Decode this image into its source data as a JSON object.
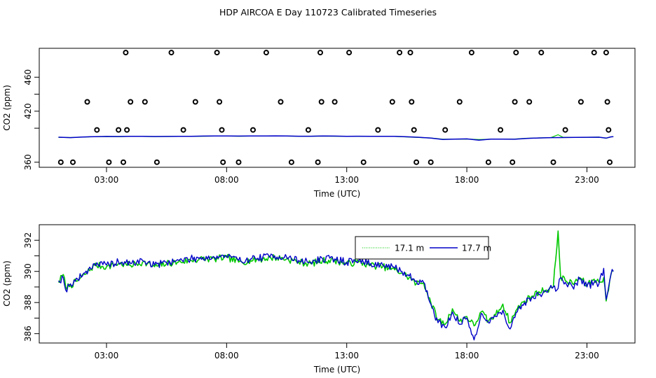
{
  "title": "HDP AIRCOA E  Day 110723  Calibrated Timeseries",
  "colors": {
    "green": "#00c800",
    "blue": "#0000c8",
    "black": "#000000"
  },
  "chart_data": [
    {
      "type": "scatter",
      "xlabel": "Time (UTC)",
      "ylabel": "CO2 (ppm)",
      "xlim": [
        0.2,
        25.0
      ],
      "ylim": [
        354,
        494
      ],
      "x_ticks": [
        3,
        8,
        13,
        18,
        23
      ],
      "x_tick_labels": [
        "03:00",
        "08:00",
        "13:00",
        "18:00",
        "23:00"
      ],
      "y_ticks": [
        360,
        420,
        460
      ],
      "y_tick_labels": [
        "360",
        "420",
        "460"
      ],
      "y_ticks_extra": [
        400,
        440
      ],
      "grid": false,
      "circles": {
        "x": [
          1.6,
          2.6,
          3.1,
          3.85,
          4.0,
          5.1,
          6.2,
          1.1,
          2.2,
          3.5,
          3.7,
          3.8,
          4.6,
          5.7,
          6.7,
          7.6,
          7.7,
          7.8,
          7.85,
          8.5,
          9.1,
          9.65,
          10.25,
          10.7,
          11.4,
          11.8,
          11.9,
          11.95,
          12.5,
          13.1,
          13.7,
          14.3,
          14.9,
          15.2,
          15.65,
          15.7,
          15.8,
          15.9,
          16.5,
          17.1,
          17.7,
          18.2,
          18.9,
          19.4,
          19.9,
          20.0,
          20.05,
          20.6,
          21.1,
          21.6,
          22.1,
          22.75,
          23.3,
          23.8,
          23.85,
          23.9,
          23.95
        ],
        "y": [
          360,
          398,
          360,
          398,
          431,
          360,
          398,
          360,
          431,
          398,
          360,
          489,
          431,
          489,
          431,
          489,
          431,
          398,
          360,
          360,
          398,
          489,
          431,
          360,
          398,
          360,
          489,
          431,
          431,
          489,
          360,
          398,
          431,
          489,
          489,
          431,
          398,
          360,
          360,
          398,
          431,
          489,
          360,
          398,
          360,
          431,
          489,
          431,
          489,
          360,
          398,
          431,
          489,
          489,
          431,
          398,
          360
        ]
      },
      "series": [
        {
          "color": "green",
          "x": [
            1.0,
            1.5,
            2.0,
            2.5,
            3.0,
            3.5,
            4.0,
            4.5,
            5.0,
            5.5,
            6.0,
            6.5,
            7.0,
            7.5,
            8.0,
            8.5,
            9.0,
            9.5,
            10.0,
            10.5,
            11.0,
            11.5,
            12.0,
            12.5,
            13.0,
            13.5,
            14.0,
            14.5,
            15.0,
            15.5,
            16.0,
            16.5,
            17.0,
            17.5,
            18.0,
            18.5,
            19.0,
            19.5,
            20.0,
            20.5,
            21.0,
            21.5,
            21.8,
            22.0,
            22.5,
            23.0,
            23.5,
            23.8,
            24.0,
            24.1
          ],
          "y": [
            389.2,
            389.0,
            389.6,
            390.0,
            390.2,
            390.0,
            390.4,
            390.3,
            390.1,
            390.2,
            390.3,
            390.4,
            390.6,
            390.7,
            390.8,
            390.6,
            390.7,
            390.8,
            390.9,
            390.7,
            390.5,
            390.6,
            390.7,
            390.6,
            390.5,
            390.6,
            390.5,
            390.4,
            390.3,
            389.7,
            389.1,
            388.5,
            387.1,
            387.0,
            387.3,
            386.7,
            387.0,
            387.2,
            387.3,
            388.2,
            388.6,
            388.9,
            392.3,
            389.4,
            389.1,
            389.3,
            389.5,
            388.2,
            389.8,
            390.0
          ]
        },
        {
          "color": "blue",
          "x": [
            1.0,
            1.5,
            2.0,
            2.5,
            3.0,
            3.5,
            4.0,
            4.5,
            5.0,
            5.5,
            6.0,
            6.5,
            7.0,
            7.5,
            8.0,
            8.5,
            9.0,
            9.5,
            10.0,
            10.5,
            11.0,
            11.5,
            12.0,
            12.5,
            13.0,
            13.5,
            14.0,
            14.5,
            15.0,
            15.5,
            16.0,
            16.5,
            17.0,
            17.5,
            18.0,
            18.5,
            19.0,
            19.5,
            20.0,
            20.5,
            21.0,
            21.5,
            22.0,
            22.5,
            23.0,
            23.5,
            23.8,
            24.0,
            24.1
          ],
          "y": [
            389.4,
            388.9,
            389.7,
            390.1,
            390.3,
            390.2,
            390.5,
            390.4,
            390.2,
            390.3,
            390.4,
            390.5,
            390.7,
            390.8,
            390.9,
            390.7,
            390.8,
            390.8,
            391.0,
            390.8,
            390.6,
            390.6,
            390.8,
            390.7,
            390.5,
            390.6,
            390.5,
            390.4,
            390.4,
            389.9,
            389.3,
            388.4,
            386.8,
            387.1,
            387.4,
            385.9,
            387.1,
            387.2,
            387.0,
            388.0,
            388.5,
            388.9,
            389.0,
            389.2,
            389.3,
            389.4,
            388.3,
            389.8,
            390.0
          ]
        }
      ]
    },
    {
      "type": "line",
      "xlabel": "Time (UTC)",
      "ylabel": "CO2 (ppm)",
      "xlim": [
        0.2,
        25.0
      ],
      "ylim": [
        385.4,
        393.0
      ],
      "x_ticks": [
        3,
        8,
        13,
        18,
        23
      ],
      "x_tick_labels": [
        "03:00",
        "08:00",
        "13:00",
        "18:00",
        "23:00"
      ],
      "y_ticks": [
        386,
        388,
        390,
        392
      ],
      "y_tick_labels": [
        "386",
        "388",
        "390",
        "392"
      ],
      "y_ticks_extra": [
        387,
        389,
        391
      ],
      "grid": false,
      "legend": {
        "placement": "top-center",
        "entries": [
          {
            "label": "17.1 m",
            "color": "green",
            "line": "dotted"
          },
          {
            "label": "17.7 m",
            "color": "blue",
            "line": "solid"
          }
        ]
      },
      "series": [
        {
          "name": "17.1 m",
          "color": "green",
          "noise": 0.22,
          "seed": 7,
          "knots_x": [
            1.0,
            1.2,
            1.3,
            1.5,
            1.8,
            2.1,
            2.5,
            3.0,
            3.5,
            4.0,
            4.5,
            5.0,
            5.5,
            6.0,
            6.5,
            7.0,
            7.5,
            8.0,
            8.5,
            9.0,
            9.5,
            10.0,
            10.5,
            11.0,
            11.5,
            12.0,
            12.5,
            13.0,
            13.5,
            14.0,
            14.5,
            15.0,
            15.3,
            15.6,
            15.9,
            16.2,
            16.5,
            16.8,
            17.1,
            17.4,
            17.7,
            18.0,
            18.3,
            18.6,
            18.9,
            19.2,
            19.5,
            19.8,
            20.1,
            20.4,
            20.7,
            21.0,
            21.3,
            21.6,
            21.8,
            21.9,
            22.1,
            22.4,
            22.7,
            23.0,
            23.3,
            23.5,
            23.7,
            23.8,
            24.0,
            24.1
          ],
          "knots_y": [
            389.3,
            389.8,
            389.0,
            389.1,
            389.4,
            389.8,
            390.4,
            390.3,
            390.5,
            390.4,
            390.6,
            390.3,
            390.5,
            390.6,
            390.7,
            390.8,
            390.8,
            390.9,
            390.6,
            390.7,
            390.8,
            390.9,
            390.8,
            390.6,
            390.5,
            390.7,
            390.7,
            390.5,
            390.6,
            390.4,
            390.3,
            390.1,
            389.9,
            389.6,
            389.2,
            389.3,
            388.0,
            386.9,
            386.6,
            387.6,
            386.8,
            387.1,
            386.5,
            387.4,
            386.8,
            387.2,
            387.9,
            386.7,
            387.6,
            388.1,
            388.4,
            388.7,
            388.8,
            389.0,
            392.6,
            389.7,
            389.4,
            389.2,
            389.6,
            389.1,
            389.5,
            389.3,
            389.6,
            388.1,
            389.8,
            390.0
          ]
        },
        {
          "name": "17.7 m",
          "color": "blue",
          "noise": 0.24,
          "seed": 19,
          "knots_x": [
            1.0,
            1.2,
            1.3,
            1.5,
            1.8,
            2.1,
            2.5,
            3.0,
            3.5,
            4.0,
            4.5,
            5.0,
            5.5,
            6.0,
            6.5,
            7.0,
            7.5,
            8.0,
            8.5,
            9.0,
            9.5,
            10.0,
            10.5,
            11.0,
            11.5,
            12.0,
            12.5,
            13.0,
            13.5,
            14.0,
            14.5,
            15.0,
            15.3,
            15.6,
            15.9,
            16.2,
            16.5,
            16.8,
            17.1,
            17.4,
            17.7,
            18.0,
            18.3,
            18.6,
            18.9,
            19.2,
            19.5,
            19.8,
            20.1,
            20.4,
            20.7,
            21.0,
            21.3,
            21.6,
            21.8,
            21.9,
            22.1,
            22.4,
            22.7,
            23.0,
            23.3,
            23.5,
            23.7,
            23.8,
            24.0,
            24.1
          ],
          "knots_y": [
            389.4,
            389.6,
            388.8,
            389.2,
            389.5,
            389.9,
            390.5,
            390.4,
            390.6,
            390.5,
            390.7,
            390.4,
            390.6,
            390.7,
            390.8,
            390.9,
            390.9,
            391.0,
            390.7,
            390.8,
            390.9,
            391.0,
            390.9,
            390.7,
            390.6,
            390.8,
            390.8,
            390.6,
            390.7,
            390.5,
            390.4,
            390.2,
            390.0,
            389.7,
            389.4,
            389.3,
            387.9,
            386.7,
            386.4,
            387.4,
            386.6,
            387.0,
            385.6,
            387.3,
            386.7,
            387.1,
            387.5,
            386.3,
            387.4,
            388.0,
            388.3,
            388.5,
            388.7,
            389.0,
            388.9,
            389.6,
            389.3,
            389.0,
            389.5,
            389.0,
            389.3,
            389.2,
            390.2,
            388.2,
            389.8,
            390.0
          ]
        }
      ]
    }
  ]
}
